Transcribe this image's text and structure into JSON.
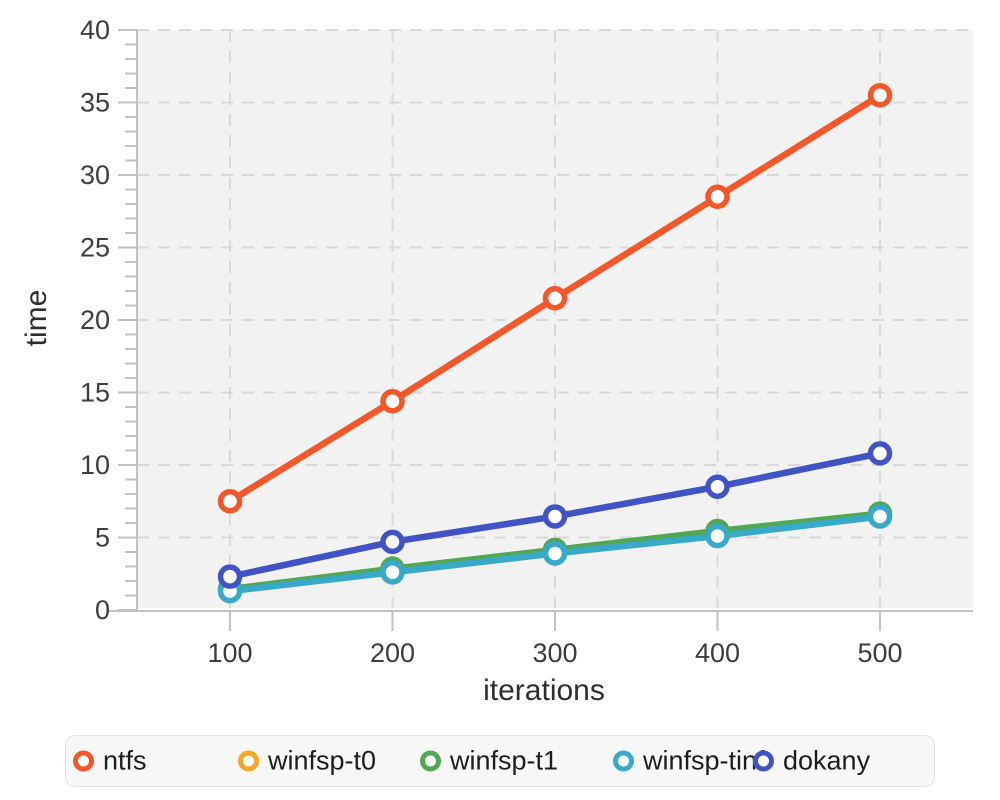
{
  "chart_data": {
    "type": "line",
    "title": "",
    "xlabel": "iterations",
    "ylabel": "time",
    "x": [
      100,
      200,
      300,
      400,
      500
    ],
    "x_ticks": [
      100,
      200,
      300,
      400,
      500
    ],
    "y_ticks": [
      0,
      5,
      10,
      15,
      20,
      25,
      30,
      35,
      40
    ],
    "y_minor_tick_step": 1,
    "xlim": [
      43,
      557
    ],
    "ylim": [
      0,
      40
    ],
    "grid": "dashed",
    "legend_position": "bottom",
    "series": [
      {
        "name": "ntfs",
        "color": "#f4582a",
        "values": [
          7.5,
          14.4,
          21.5,
          28.5,
          35.5
        ]
      },
      {
        "name": "winfsp-t0",
        "color": "#f6a623",
        "values": [
          1.4,
          2.7,
          4.0,
          5.3,
          6.55
        ]
      },
      {
        "name": "winfsp-t1",
        "color": "#52a852",
        "values": [
          1.45,
          2.85,
          4.15,
          5.45,
          6.65
        ]
      },
      {
        "name": "winfsp-tinf",
        "color": "#38a9c9",
        "values": [
          1.3,
          2.6,
          3.9,
          5.1,
          6.45
        ]
      },
      {
        "name": "dokany",
        "color": "#4254c5",
        "values": [
          2.3,
          4.7,
          6.45,
          8.5,
          10.8
        ]
      }
    ],
    "colors": {
      "plot_background": "#f2f2f2",
      "gridline": "#d9d9d9",
      "axis": "#c2c2c2",
      "tick_label": "#3d3d3d",
      "axis_title": "#2e2e2e"
    }
  }
}
